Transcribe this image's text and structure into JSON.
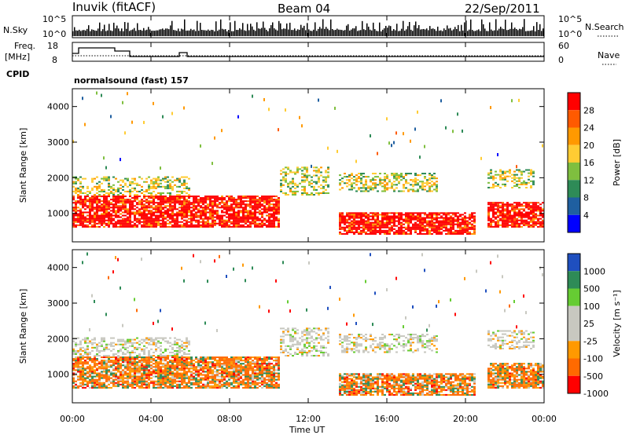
{
  "header": {
    "station": "Inuvik (fitACF)",
    "beam": "Beam 04",
    "date": "22/Sep/2011"
  },
  "strip_panels": {
    "nsky_label": "N.Sky",
    "nsky_ticks": [
      "10^5",
      "10^0"
    ],
    "nsearch_label": "N.Search",
    "freq_label_1": "Freq.",
    "freq_label_2": "[MHz]",
    "freq_ticks": [
      "18",
      "8"
    ],
    "nave_ticks": [
      "60",
      "0"
    ],
    "nave_label": "Nave",
    "cpid_label": "CPID",
    "cpid_text": "normalsound (fast) 157"
  },
  "x_axis": {
    "label": "Time UT",
    "ticks": [
      "00:00",
      "04:00",
      "08:00",
      "12:00",
      "16:00",
      "20:00",
      "00:00"
    ]
  },
  "chart_data": [
    {
      "type": "heatmap",
      "name": "power",
      "ylabel": "Slant Range [km]",
      "y_ticks": [
        "4000",
        "3000",
        "2000",
        "1000"
      ],
      "ylim": [
        200,
        4500
      ],
      "xlim": [
        0,
        24
      ],
      "colorbar_label": "Power [dB]",
      "colorbar_ticks": [
        "28",
        "24",
        "20",
        "16",
        "12",
        "8",
        "4"
      ],
      "colorbar_colors": [
        "#ff0000",
        "#ff5a00",
        "#ff9900",
        "#ffcc33",
        "#7fbf3f",
        "#2e8b57",
        "#1f5fa0",
        "#0000ff"
      ],
      "dominant_regions": [
        {
          "t_start": 0,
          "t_end": 10.5,
          "range_low": 600,
          "range_high": 1500,
          "level": "28"
        },
        {
          "t_start": 13.5,
          "t_end": 20.5,
          "range_low": 400,
          "range_high": 1000,
          "level": "28"
        },
        {
          "t_start": 21,
          "t_end": 24,
          "range_low": 600,
          "range_high": 1300,
          "level": "28"
        }
      ]
    },
    {
      "type": "heatmap",
      "name": "velocity",
      "ylabel": "Slant Range [km]",
      "y_ticks": [
        "4000",
        "3000",
        "2000",
        "1000"
      ],
      "ylim": [
        200,
        4500
      ],
      "xlim": [
        0,
        24
      ],
      "colorbar_label": "Velocity [m s⁻¹]",
      "colorbar_ticks": [
        "1000",
        "500",
        "100",
        "25",
        "-25",
        "-100",
        "-500",
        "-1000"
      ],
      "colorbar_colors": [
        "#1f4fbf",
        "#2e8b57",
        "#66cc33",
        "#c8c8c0",
        "#c8c8c0",
        "#ff9900",
        "#ff6a00",
        "#ff0000"
      ]
    }
  ]
}
